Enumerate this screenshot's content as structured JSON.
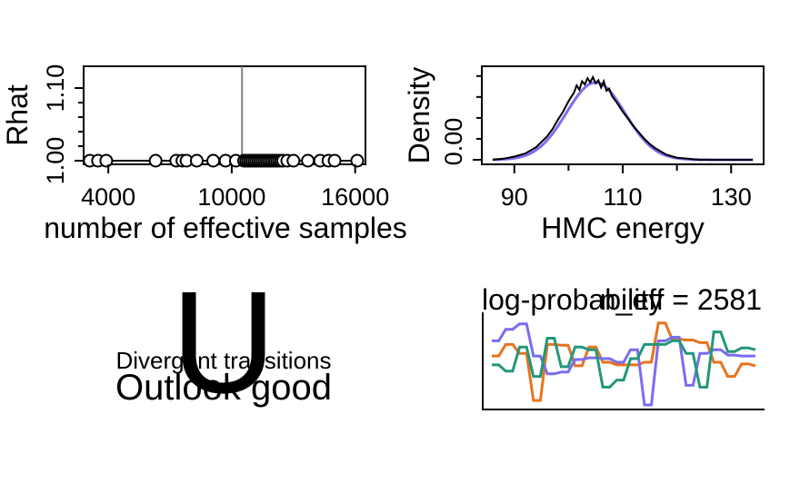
{
  "chart_data": [
    {
      "type": "scatter",
      "xlabel": "number of effective samples",
      "ylabel": "Rhat",
      "x_ticks": [
        "4000",
        "10000",
        "16000"
      ],
      "y_ticks": [
        "1.00",
        "1.10"
      ],
      "xlim": [
        2800,
        16500
      ],
      "ylim": [
        0.995,
        1.13
      ],
      "vline_x": 10500,
      "points": [
        {
          "x": 3100,
          "y": 1.0
        },
        {
          "x": 3500,
          "y": 1.0
        },
        {
          "x": 3900,
          "y": 1.0
        },
        {
          "x": 6300,
          "y": 1.0
        },
        {
          "x": 7300,
          "y": 1.0
        },
        {
          "x": 7600,
          "y": 1.0
        },
        {
          "x": 7800,
          "y": 1.0
        },
        {
          "x": 8300,
          "y": 1.0
        },
        {
          "x": 9100,
          "y": 1.0
        },
        {
          "x": 9700,
          "y": 1.0
        },
        {
          "x": 10200,
          "y": 1.0
        },
        {
          "x": 10600,
          "y": 1.0
        },
        {
          "x": 10700,
          "y": 1.0
        },
        {
          "x": 10800,
          "y": 1.0
        },
        {
          "x": 10900,
          "y": 1.0
        },
        {
          "x": 11000,
          "y": 1.0
        },
        {
          "x": 11100,
          "y": 1.0
        },
        {
          "x": 11200,
          "y": 1.0
        },
        {
          "x": 11300,
          "y": 1.0
        },
        {
          "x": 11400,
          "y": 1.0
        },
        {
          "x": 11500,
          "y": 1.0
        },
        {
          "x": 11600,
          "y": 1.0
        },
        {
          "x": 11700,
          "y": 1.0
        },
        {
          "x": 11800,
          "y": 1.0
        },
        {
          "x": 11900,
          "y": 1.0
        },
        {
          "x": 12000,
          "y": 1.0
        },
        {
          "x": 12100,
          "y": 1.0
        },
        {
          "x": 12200,
          "y": 1.0
        },
        {
          "x": 12300,
          "y": 1.0
        },
        {
          "x": 12400,
          "y": 1.0
        },
        {
          "x": 12500,
          "y": 1.0
        },
        {
          "x": 12700,
          "y": 1.0
        },
        {
          "x": 13000,
          "y": 1.0
        },
        {
          "x": 13700,
          "y": 1.0
        },
        {
          "x": 14300,
          "y": 1.0
        },
        {
          "x": 14700,
          "y": 1.0
        },
        {
          "x": 15000,
          "y": 1.0
        },
        {
          "x": 16100,
          "y": 1.0
        }
      ],
      "series_color": "#000000",
      "vline_color": "#808080"
    },
    {
      "type": "line",
      "xlabel": "HMC energy",
      "ylabel": "Density",
      "x_ticks": [
        "90",
        "110",
        "130"
      ],
      "y_ticks": [
        "0.00"
      ],
      "xlim": [
        84,
        136
      ],
      "ylim": [
        0,
        0.085
      ],
      "normal_curve": {
        "mean": 105,
        "sd": 5.4,
        "range": [
          86,
          134
        ],
        "color": "#7b6cf0"
      },
      "empirical_density": {
        "color": "#000000",
        "x": [
          86,
          88,
          90,
          92,
          94,
          96,
          97,
          98,
          99,
          100,
          101,
          101.5,
          102,
          102.5,
          103,
          103.5,
          104,
          104.5,
          105,
          105.5,
          106,
          106.5,
          107,
          107.5,
          108,
          109,
          110,
          111,
          112,
          113,
          114,
          115,
          116,
          118,
          120,
          122,
          124,
          126,
          128,
          130,
          132,
          134
        ],
        "y": [
          0.0,
          0.001,
          0.003,
          0.006,
          0.012,
          0.022,
          0.029,
          0.038,
          0.046,
          0.056,
          0.064,
          0.071,
          0.067,
          0.075,
          0.072,
          0.078,
          0.074,
          0.079,
          0.073,
          0.076,
          0.069,
          0.075,
          0.066,
          0.068,
          0.061,
          0.054,
          0.046,
          0.039,
          0.032,
          0.026,
          0.02,
          0.015,
          0.011,
          0.005,
          0.002,
          0.001,
          0.0,
          0.0,
          0.0,
          0.0,
          0.0,
          0.0
        ]
      }
    },
    {
      "type": "text-panel",
      "symbol": "U",
      "line1": "Divergent transitions",
      "line2": "Outlook good"
    },
    {
      "type": "line",
      "title_left": "log-probability",
      "title_right": "n_eff = 2581",
      "step": true,
      "ylim": [
        0,
        1
      ],
      "series": [
        {
          "color": "#e8731e",
          "values": [
            0.55,
            0.55,
            0.68,
            0.68,
            0.58,
            0.58,
            0.05,
            0.05,
            0.68,
            0.68,
            0.67,
            0.67,
            0.44,
            0.44,
            0.65,
            0.65,
            0.48,
            0.48,
            0.45,
            0.45,
            0.45,
            0.45,
            0.48,
            0.48,
            0.92,
            0.92,
            0.74,
            0.74,
            0.73,
            0.73,
            0.7,
            0.7,
            0.48,
            0.48,
            0.32,
            0.32,
            0.46,
            0.46,
            0.44
          ]
        },
        {
          "color": "#7b6cf0",
          "values": [
            0.72,
            0.72,
            0.85,
            0.85,
            0.91,
            0.91,
            0.55,
            0.55,
            0.35,
            0.35,
            0.37,
            0.37,
            0.51,
            0.51,
            0.53,
            0.53,
            0.52,
            0.52,
            0.48,
            0.48,
            0.62,
            0.62,
            0.0,
            0.0,
            0.72,
            0.72,
            0.76,
            0.76,
            0.22,
            0.22,
            0.58,
            0.58,
            0.62,
            0.62,
            0.56,
            0.56,
            0.55,
            0.55,
            0.55
          ]
        },
        {
          "color": "#22977a",
          "values": [
            0.45,
            0.45,
            0.38,
            0.38,
            0.65,
            0.65,
            0.32,
            0.32,
            0.75,
            0.75,
            0.43,
            0.43,
            0.65,
            0.65,
            0.62,
            0.62,
            0.2,
            0.2,
            0.28,
            0.28,
            0.52,
            0.52,
            0.68,
            0.68,
            0.68,
            0.68,
            0.72,
            0.72,
            0.58,
            0.58,
            0.2,
            0.2,
            0.82,
            0.82,
            0.6,
            0.6,
            0.64,
            0.64,
            0.62
          ]
        }
      ]
    }
  ]
}
